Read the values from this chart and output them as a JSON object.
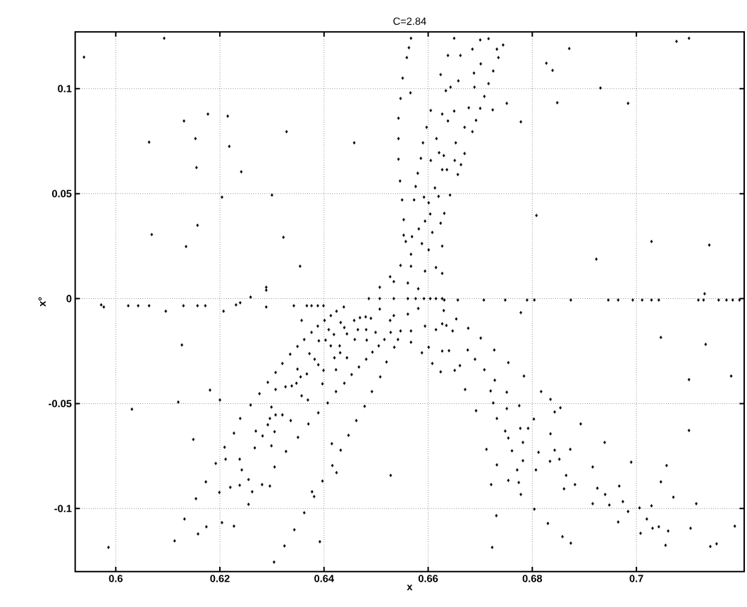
{
  "chart_data": {
    "type": "scatter",
    "title": "C=2.84",
    "xlabel": "x",
    "ylabel": "x°",
    "xlim": [
      0.5922,
      0.7207
    ],
    "ylim": [
      -0.13,
      0.127
    ],
    "xticks": [
      0.6,
      0.62,
      0.64,
      0.66,
      0.68,
      0.7
    ],
    "yticks": [
      -0.1,
      -0.05,
      0,
      0.05,
      0.1
    ],
    "grid": true,
    "marker": "diamond",
    "series": [
      {
        "color": "#000000",
        "x": [
          0.5939,
          0.6093,
          0.6177,
          0.6131,
          0.6153,
          0.6155,
          0.6064,
          0.6215,
          0.6218,
          0.6241,
          0.6328,
          0.6458,
          0.6204,
          0.63,
          0.6157,
          0.6069,
          0.6135,
          0.6322,
          0.6354,
          0.6289,
          0.6289,
          0.6259,
          0.5972,
          0.5977,
          0.6024,
          0.6043,
          0.6064,
          0.6096,
          0.613,
          0.6157,
          0.6172,
          0.6207,
          0.6231,
          0.6239,
          0.6289,
          0.6342,
          0.6367,
          0.6376,
          0.6388,
          0.6399
        ],
        "values": [
          0.115,
          0.124,
          0.0879,
          0.0846,
          0.0762,
          0.0624,
          0.0745,
          0.0869,
          0.0725,
          0.0604,
          0.0795,
          0.0742,
          0.0483,
          0.0493,
          0.0349,
          0.0305,
          0.0248,
          0.0292,
          0.0154,
          0.0054,
          0.004,
          0.0007,
          -0.003,
          -0.004,
          -0.0034,
          -0.0034,
          -0.0034,
          -0.006,
          -0.0034,
          -0.0034,
          -0.0034,
          -0.006,
          -0.003,
          -0.002,
          -0.004,
          -0.0034,
          -0.0034,
          -0.0034,
          -0.0034,
          -0.0034
        ]
      },
      {
        "color": "#000000",
        "x": [
          0.6631,
          0.6657,
          0.6707,
          0.6748,
          0.679,
          0.6804,
          0.6874,
          0.6946,
          0.6965,
          0.6993,
          0.7011,
          0.7029,
          0.7043,
          0.7119,
          0.7129,
          0.7158,
          0.7173,
          0.7185,
          0.7198,
          0.7131,
          0.6559,
          0.6551,
          0.6547,
          0.6543,
          0.6543,
          0.6543,
          0.6546,
          0.655,
          0.6553,
          0.6557,
          0.6553,
          0.6569,
          0.6582,
          0.6594,
          0.6604,
          0.6827,
          0.6839,
          0.6871,
          0.6931,
          0.6848,
          0.6984,
          0.7077,
          0.7101,
          0.6808,
          0.6923,
          0.7029,
          0.714,
          0.6778
        ],
        "values": [
          -0.0007,
          -0.0007,
          -0.0007,
          -0.0007,
          -0.0007,
          -0.0007,
          -0.0007,
          -0.0007,
          -0.0007,
          -0.0007,
          -0.0007,
          -0.0007,
          -0.0007,
          -0.0007,
          -0.0007,
          -0.0007,
          -0.0007,
          -0.0007,
          -0.0007,
          0.0023,
          0.1148,
          0.105,
          0.0953,
          0.0859,
          0.0762,
          0.0664,
          0.056,
          0.047,
          0.0376,
          0.0272,
          0.0302,
          0.0295,
          0.0332,
          0.0369,
          0.0403,
          0.1121,
          0.1087,
          0.1191,
          0.1003,
          0.0933,
          0.093,
          0.1225,
          0.124,
          0.0396,
          0.0188,
          0.0272,
          0.0255,
          -0.0067
        ]
      },
      {
        "color": "#000000",
        "x": [
          0.6631,
          0.6642,
          0.6657,
          0.6651,
          0.6663,
          0.6653,
          0.667,
          0.667,
          0.6685,
          0.6692,
          0.6678,
          0.67,
          0.6708,
          0.6724,
          0.6751,
          0.6778,
          0.6689,
          0.6716,
          0.6688,
          0.6725,
          0.6701,
          0.6685,
          0.67,
          0.6716,
          0.6732,
          0.6735,
          0.6744,
          0.6662,
          0.6638,
          0.6624,
          0.665,
          0.6658,
          0.6643,
          0.6634,
          0.6627,
          0.6638,
          0.665,
          0.6616,
          0.6621,
          0.663,
          0.6627,
          0.6636,
          0.6613,
          0.662,
          0.6605,
          0.6597,
          0.659,
          0.6586,
          0.658,
          0.6576,
          0.6573,
          0.6592,
          0.6601,
          0.6605,
          0.6566,
          0.6563,
          0.6567
        ],
        "values": [
          0.0406,
          0.0493,
          0.0591,
          0.0658,
          0.0638,
          0.0742,
          0.0691,
          0.0816,
          0.0795,
          0.0849,
          0.0909,
          0.0906,
          0.0963,
          0.0899,
          0.093,
          0.0842,
          0.1007,
          0.1024,
          0.1074,
          0.1084,
          0.1118,
          0.1188,
          0.1232,
          0.1238,
          0.1188,
          0.1148,
          0.1208,
          0.1158,
          0.1158,
          0.1067,
          0.124,
          0.1037,
          0.1007,
          0.099,
          0.0879,
          0.0846,
          0.0893,
          0.0762,
          0.0695,
          0.0681,
          0.0614,
          0.0614,
          0.0527,
          0.0487,
          0.0658,
          0.0816,
          0.0742,
          0.0668,
          0.0597,
          0.0534,
          0.047,
          0.0483,
          0.0456,
          0.0896,
          0.098,
          0.1195,
          0.124
        ]
      },
      {
        "color": "#000000",
        "x": [
          0.6127,
          0.6181,
          0.612,
          0.6031,
          0.6149,
          0.6192,
          0.6173,
          0.6154,
          0.6199,
          0.6132,
          0.6174,
          0.6158,
          0.6113,
          0.5986,
          0.6204,
          0.6227,
          0.62,
          0.6259,
          0.6239,
          0.6227,
          0.6209,
          0.6211,
          0.6238,
          0.6242,
          0.6255,
          0.622,
          0.6238,
          0.6262,
          0.6281,
          0.6296,
          0.6255,
          0.6269,
          0.6267,
          0.6282,
          0.6299,
          0.6305,
          0.6327,
          0.6292,
          0.6296,
          0.6305,
          0.6299,
          0.6307,
          0.632,
          0.6336,
          0.635,
          0.6276,
          0.6292,
          0.6307,
          0.6307,
          0.632,
          0.6335,
          0.6326,
          0.6338,
          0.6347,
          0.6355,
          0.6357,
          0.6349,
          0.6349,
          0.6362,
          0.6372,
          0.6382,
          0.6389,
          0.6367,
          0.6399,
          0.6397,
          0.6369,
          0.637,
          0.6389,
          0.6407,
          0.6376,
          0.6388,
          0.6357,
          0.6401,
          0.639,
          0.6403,
          0.6409,
          0.6413,
          0.6413,
          0.6423,
          0.6423,
          0.6419,
          0.642,
          0.643,
          0.6431,
          0.6439,
          0.6444,
          0.6453,
          0.6424,
          0.6438,
          0.6432,
          0.6439,
          0.6444,
          0.6458,
          0.6469,
          0.648,
          0.649,
          0.6459,
          0.6465,
          0.6481,
          0.6482,
          0.6499,
          0.6467,
          0.6481,
          0.6493,
          0.6505,
          0.6516,
          0.6528,
          0.6542
        ],
        "values": [
          -0.0221,
          -0.0436,
          -0.0493,
          -0.0527,
          -0.0671,
          -0.0785,
          -0.0873,
          -0.0953,
          -0.0923,
          -0.105,
          -0.1087,
          -0.1121,
          -0.1154,
          -0.1185,
          -0.1067,
          -0.1084,
          -0.0483,
          -0.0507,
          -0.0571,
          -0.0641,
          -0.0708,
          -0.0765,
          -0.0765,
          -0.0816,
          -0.0862,
          -0.0899,
          -0.0889,
          -0.092,
          -0.0886,
          -0.0893,
          -0.098,
          -0.0631,
          -0.0711,
          -0.0654,
          -0.0701,
          -0.0802,
          -0.0728,
          -0.0601,
          -0.0571,
          -0.0634,
          -0.0517,
          -0.0554,
          -0.0554,
          -0.0581,
          -0.0661,
          -0.0453,
          -0.0399,
          -0.0433,
          -0.0352,
          -0.0309,
          -0.0265,
          -0.042,
          -0.0416,
          -0.0403,
          -0.0373,
          -0.0463,
          -0.0336,
          -0.0228,
          -0.0195,
          -0.0262,
          -0.0289,
          -0.0315,
          -0.0359,
          -0.0342,
          -0.0406,
          -0.0483,
          -0.0597,
          -0.0544,
          -0.0497,
          -0.0161,
          -0.0131,
          -0.0104,
          -0.0104,
          -0.0201,
          -0.0198,
          -0.0148,
          -0.0081,
          -0.0225,
          -0.0443,
          -0.0339,
          -0.0171,
          -0.0282,
          -0.0225,
          -0.0258,
          -0.0403,
          -0.0282,
          -0.0362,
          -0.006,
          -0.004,
          -0.0114,
          -0.0138,
          -0.0168,
          -0.0104,
          -0.0091,
          -0.0087,
          -0.0094,
          -0.0195,
          -0.0148,
          -0.0148,
          -0.0198,
          -0.0161,
          -0.0326,
          -0.0289,
          -0.0255,
          -0.0225,
          -0.0195,
          -0.0161,
          -0.0195
        ]
      },
      {
        "color": "#000000",
        "x": [
          0.6535,
          0.652,
          0.6508,
          0.6492,
          0.6478,
          0.6462,
          0.6447,
          0.6432,
          0.6416,
          0.6397,
          0.6381,
          0.6362,
          0.6343,
          0.6324,
          0.6304,
          0.6424,
          0.6415,
          0.6392,
          0.6528,
          0.6377
        ],
        "values": [
          -0.0232,
          -0.0302,
          -0.0373,
          -0.0443,
          -0.0513,
          -0.0581,
          -0.0651,
          -0.0722,
          -0.0795,
          -0.0869,
          -0.0943,
          -0.102,
          -0.1101,
          -0.1178,
          -0.1255,
          -0.0829,
          -0.0691,
          -0.1158,
          -0.0842,
          -0.092
        ]
      },
      {
        "color": "#000000",
        "x": [
          0.663,
          0.6654,
          0.6677,
          0.6701,
          0.6727,
          0.6754,
          0.6784,
          0.6817,
          0.6854,
          0.6893,
          0.6939,
          0.699,
          0.7047,
          0.7115,
          0.7189,
          0.6635,
          0.664,
          0.6651,
          0.6671,
          0.6692,
          0.6712,
          0.6732,
          0.6754,
          0.6778,
          0.6804,
          0.683,
          0.6858,
          0.6874
        ],
        "values": [
          -0.0057,
          -0.0097,
          -0.0141,
          -0.0188,
          -0.0245,
          -0.0305,
          -0.0369,
          -0.0443,
          -0.052,
          -0.0597,
          -0.0685,
          -0.0779,
          -0.0873,
          -0.0977,
          -0.1084,
          -0.0128,
          -0.0248,
          -0.0342,
          -0.0433,
          -0.0534,
          -0.0718,
          -0.0792,
          -0.0866,
          -0.0933,
          -0.1003,
          -0.1071,
          -0.1134,
          -0.1165
        ]
      },
      {
        "color": "#000000",
        "x": [
          0.6647,
          0.6661,
          0.6676,
          0.669,
          0.6708,
          0.6728,
          0.672,
          0.6725,
          0.6751,
          0.6751,
          0.6775,
          0.6732,
          0.6748,
          0.6754,
          0.6777,
          0.6792,
          0.6782,
          0.6803,
          0.6812,
          0.6761,
          0.6782,
          0.6771,
          0.6774,
          0.6807,
          0.6835,
          0.6843,
          0.6835,
          0.6843,
          0.6873,
          0.6834,
          0.6852,
          0.6865,
          0.6882,
          0.6861,
          0.6916,
          0.6925,
          0.694,
          0.6948,
          0.6916,
          0.6967,
          0.6974,
          0.6984,
          0.7006,
          0.7029,
          0.702,
          0.7031,
          0.7043,
          0.7061,
          0.7071,
          0.7058,
          0.7104,
          0.7056,
          0.7142,
          0.7154,
          0.7008,
          0.6965,
          0.7101,
          0.7047,
          0.7133,
          0.7101,
          0.7182,
          0.6731,
          0.6721,
          0.6723
        ],
        "values": [
          -0.0154,
          -0.0319,
          -0.0245,
          -0.0289,
          -0.0339,
          -0.0389,
          -0.044,
          -0.0497,
          -0.0446,
          -0.0524,
          -0.051,
          -0.0571,
          -0.0631,
          -0.0664,
          -0.0618,
          -0.0618,
          -0.0685,
          -0.0574,
          -0.0732,
          -0.0725,
          -0.0772,
          -0.0816,
          -0.0876,
          -0.0816,
          -0.048,
          -0.054,
          -0.0644,
          -0.0722,
          -0.0718,
          -0.0775,
          -0.0765,
          -0.0842,
          -0.0886,
          -0.0906,
          -0.0802,
          -0.0903,
          -0.0933,
          -0.0983,
          -0.0977,
          -0.0893,
          -0.0967,
          -0.1014,
          -0.0997,
          -0.0987,
          -0.105,
          -0.1094,
          -0.1087,
          -0.1107,
          -0.0946,
          -0.0795,
          -0.1094,
          -0.1175,
          -0.1181,
          -0.1168,
          -0.1118,
          -0.1064,
          -0.0628,
          -0.0185,
          -0.0218,
          -0.0386,
          -0.0369,
          -0.1034,
          -0.0886,
          -0.1185
        ]
      },
      {
        "color": "#000000",
        "x": [
          0.6486,
          0.6507,
          0.6527,
          0.6547,
          0.6567,
          0.6588,
          0.6608,
          0.6624,
          0.6627,
          0.6627,
          0.6627,
          0.6627,
          0.6627,
          0.6624,
          0.6608,
          0.6588,
          0.6567,
          0.6547,
          0.6527,
          0.6507,
          0.6507,
          0.6534,
          0.6567,
          0.6601,
          0.6615,
          0.6615,
          0.6615,
          0.6601,
          0.6567,
          0.6534,
          0.6534,
          0.6561,
          0.6594,
          0.6604,
          0.6594,
          0.6561,
          0.6561,
          0.6581,
          0.6592,
          0.6581,
          0.6576
        ],
        "values": [
          0,
          0.0054,
          0.0104,
          0.0158,
          0.0211,
          0.0262,
          0.0315,
          0.0359,
          0.025,
          0.012,
          0,
          -0.012,
          -0.025,
          -0.0349,
          -0.0309,
          -0.0258,
          -0.0208,
          -0.0154,
          -0.0104,
          -0.005,
          0,
          0.0081,
          0.0154,
          0.0232,
          0.0148,
          0,
          -0.0148,
          -0.0232,
          -0.0154,
          -0.0081,
          0,
          0.0074,
          0.0131,
          0,
          -0.0131,
          -0.0074,
          0,
          0.0047,
          0,
          -0.0047,
          0
        ]
      }
    ]
  }
}
